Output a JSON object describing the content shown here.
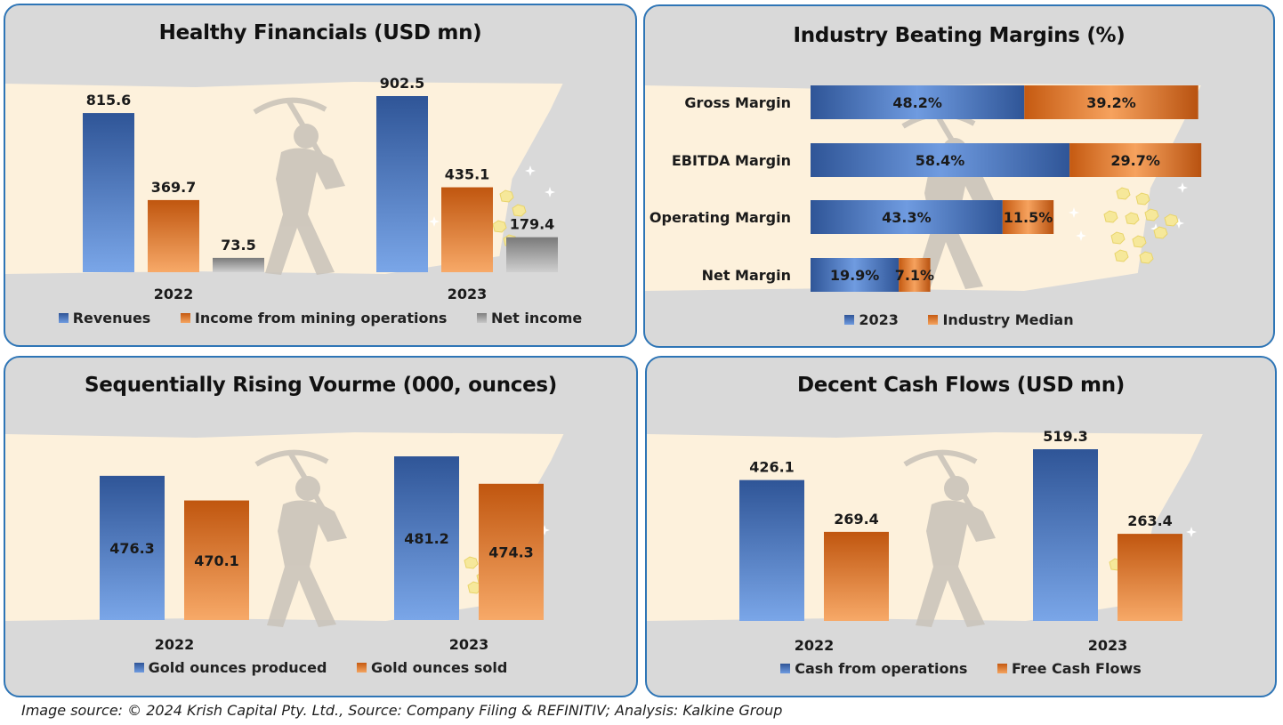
{
  "colors": {
    "blue": "#4472c4",
    "orange": "#ed7d31",
    "gray": "#a5a5a5",
    "border": "#2e75b6",
    "panel_bg": "#d9d9d9",
    "band": "#fdf1dc"
  },
  "panels": {
    "financials": {
      "title": "Healthy Financials (USD mn)",
      "legend": [
        "Revenues",
        "Income from mining operations",
        "Net income"
      ]
    },
    "margins": {
      "title": "Industry Beating Margins (%)",
      "legend": [
        "2023",
        "Industry Median"
      ]
    },
    "volume": {
      "title": "Sequentially Rising Vourme (000, ounces)",
      "legend": [
        "Gold ounces produced",
        "Gold ounces sold"
      ]
    },
    "cashflows": {
      "title": "Decent Cash Flows (USD mn)",
      "legend": [
        "Cash from operations",
        "Free Cash Flows"
      ]
    }
  },
  "chart_data": [
    {
      "type": "bar",
      "title": "Healthy Financials (USD mn)",
      "categories": [
        "2022",
        "2023"
      ],
      "series": [
        {
          "name": "Revenues",
          "values": [
            815.6,
            902.5
          ],
          "labels": [
            "815.6",
            "902.5"
          ]
        },
        {
          "name": "Income from mining operations",
          "values": [
            369.7,
            435.1
          ],
          "labels": [
            "369.7",
            "435.1"
          ]
        },
        {
          "name": "Net income",
          "values": [
            73.5,
            179.4
          ],
          "labels": [
            "73.5",
            "179.4"
          ]
        }
      ],
      "label_position": "above",
      "ylim": [
        0,
        902.5
      ]
    },
    {
      "type": "bar",
      "orientation": "horizontal",
      "stacked": true,
      "title": "Industry Beating Margins (%)",
      "categories": [
        "Gross Margin",
        "EBITDA Margin",
        "Operating Margin",
        "Net Margin"
      ],
      "series": [
        {
          "name": "2023",
          "values": [
            48.2,
            58.4,
            43.3,
            19.9
          ],
          "labels": [
            "48.2%",
            "58.4%",
            "43.3%",
            "19.9%"
          ]
        },
        {
          "name": "Industry Median",
          "values": [
            39.2,
            29.7,
            11.5,
            7.1
          ],
          "labels": [
            "39.2%",
            "29.7%",
            "11.5%",
            "7.1%"
          ]
        }
      ],
      "xlim": [
        0,
        88.1
      ]
    },
    {
      "type": "bar",
      "title": "Sequentially Rising Vourme (000, ounces)",
      "categories": [
        "2022",
        "2023"
      ],
      "series": [
        {
          "name": "Gold ounces produced",
          "values": [
            476.3,
            481.2
          ],
          "labels": [
            "476.3",
            "481.2"
          ]
        },
        {
          "name": "Gold ounces sold",
          "values": [
            470.1,
            474.3
          ],
          "labels": [
            "470.1",
            "474.3"
          ]
        }
      ],
      "label_position": "inside",
      "ylim": [
        440,
        481.2
      ]
    },
    {
      "type": "bar",
      "title": "Decent Cash Flows (USD mn)",
      "categories": [
        "2022",
        "2023"
      ],
      "series": [
        {
          "name": "Cash from operations",
          "values": [
            426.1,
            519.3
          ],
          "labels": [
            "426.1",
            "519.3"
          ]
        },
        {
          "name": "Free Cash Flows",
          "values": [
            269.4,
            263.4
          ],
          "labels": [
            "269.4",
            "263.4"
          ]
        }
      ],
      "label_position": "above",
      "ylim": [
        0,
        519.3
      ]
    }
  ],
  "source": "Image source: © 2024 Krish Capital Pty. Ltd., Source: Company Filing & REFINITIV; Analysis: Kalkine Group"
}
